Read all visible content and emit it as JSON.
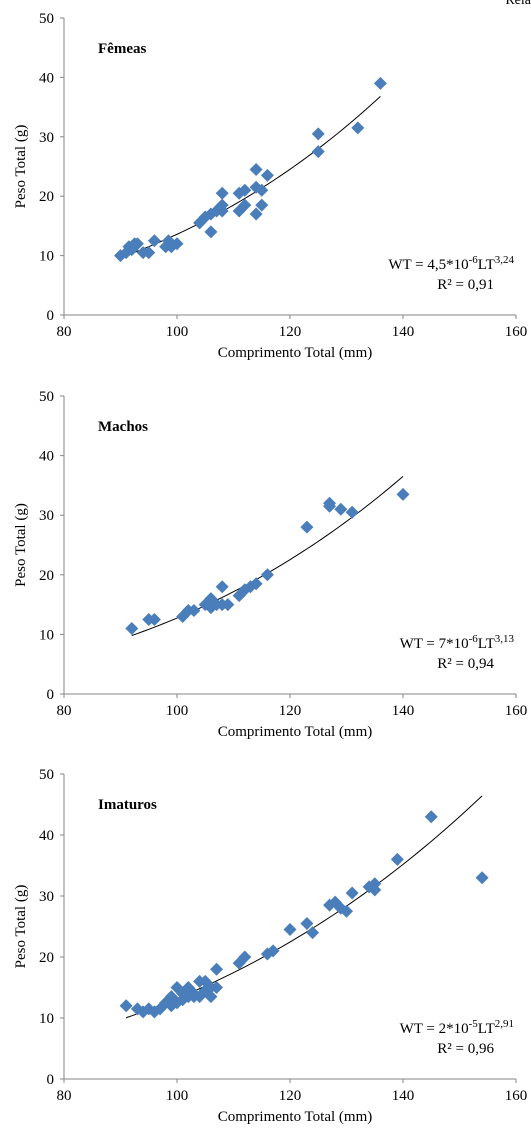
{
  "page": {
    "corner_text": "Rela"
  },
  "chart_data": [
    {
      "type": "scatter",
      "panel_label": "Fêmeas",
      "xlabel": "Comprimento Total (mm)",
      "ylabel": "Peso Total (g)",
      "xlim": [
        80,
        160
      ],
      "ylim": [
        0,
        50
      ],
      "xticks": [
        "80",
        "100",
        "120",
        "140",
        "160"
      ],
      "yticks": [
        "0",
        "10",
        "20",
        "30",
        "40",
        "50"
      ],
      "grid": false,
      "marker_color": "#4a7ebb",
      "trendline": {
        "a": 4.5e-06,
        "b": 3.24,
        "x_range": [
          90,
          136
        ],
        "color": "#000000"
      },
      "equation": {
        "prefix": "WT = 4,5*10",
        "exp1": "-6",
        "mid": "LT",
        "exp2": "3,24",
        "r2": "R² = 0,91"
      },
      "points": [
        [
          90,
          10
        ],
        [
          91,
          10.5
        ],
        [
          91.5,
          11.5
        ],
        [
          92,
          11
        ],
        [
          92.5,
          12
        ],
        [
          93,
          12
        ],
        [
          94,
          10.5
        ],
        [
          95,
          10.5
        ],
        [
          96,
          12.5
        ],
        [
          98,
          11.5
        ],
        [
          98.5,
          12.5
        ],
        [
          99,
          11.5
        ],
        [
          100,
          12
        ],
        [
          104,
          15.5
        ],
        [
          105,
          16.5
        ],
        [
          106,
          17
        ],
        [
          106,
          14
        ],
        [
          107,
          17.5
        ],
        [
          107.5,
          18
        ],
        [
          108,
          18.5
        ],
        [
          108,
          20.5
        ],
        [
          108,
          17.5
        ],
        [
          111,
          17.5
        ],
        [
          111,
          20.5
        ],
        [
          112,
          18.5
        ],
        [
          112,
          21
        ],
        [
          114,
          24.5
        ],
        [
          114,
          21.5
        ],
        [
          114,
          17
        ],
        [
          115,
          18.5
        ],
        [
          115,
          21
        ],
        [
          116,
          23.5
        ],
        [
          125,
          30.5
        ],
        [
          125,
          27.5
        ],
        [
          132,
          31.5
        ],
        [
          136,
          39
        ]
      ]
    },
    {
      "type": "scatter",
      "panel_label": "Machos",
      "xlabel": "Comprimento Total (mm)",
      "ylabel": "Peso Total (g)",
      "xlim": [
        80,
        160
      ],
      "ylim": [
        0,
        50
      ],
      "xticks": [
        "80",
        "100",
        "120",
        "140",
        "160"
      ],
      "yticks": [
        "0",
        "10",
        "20",
        "30",
        "40",
        "50"
      ],
      "grid": false,
      "marker_color": "#4a7ebb",
      "trendline": {
        "a": 7e-06,
        "b": 3.13,
        "x_range": [
          92,
          140
        ],
        "color": "#000000"
      },
      "equation": {
        "prefix": "WT = 7*10",
        "exp1": "-6",
        "mid": "LT",
        "exp2": "3,13",
        "r2": "R² = 0,94"
      },
      "points": [
        [
          92,
          11
        ],
        [
          95,
          12.5
        ],
        [
          96,
          12.5
        ],
        [
          101,
          13
        ],
        [
          102,
          14
        ],
        [
          103,
          14
        ],
        [
          105,
          15
        ],
        [
          106,
          14.5
        ],
        [
          106,
          16
        ],
        [
          107,
          15
        ],
        [
          108,
          18
        ],
        [
          108,
          15
        ],
        [
          109,
          15
        ],
        [
          111,
          16.5
        ],
        [
          112,
          17.5
        ],
        [
          113,
          18
        ],
        [
          114,
          18.5
        ],
        [
          116,
          20
        ],
        [
          123,
          28
        ],
        [
          127,
          31.5
        ],
        [
          127,
          32
        ],
        [
          129,
          31
        ],
        [
          131,
          30.5
        ],
        [
          140,
          33.5
        ]
      ]
    },
    {
      "type": "scatter",
      "panel_label": "Imaturos",
      "xlabel": "Comprimento Total (mm)",
      "ylabel": "Peso Total (g)",
      "xlim": [
        80,
        160
      ],
      "ylim": [
        0,
        50
      ],
      "xticks": [
        "80",
        "100",
        "120",
        "140",
        "160"
      ],
      "yticks": [
        "0",
        "10",
        "20",
        "30",
        "40",
        "50"
      ],
      "grid": false,
      "marker_color": "#4a7ebb",
      "trendline": {
        "a": 2e-05,
        "b": 2.91,
        "x_range": [
          91,
          154
        ],
        "color": "#000000"
      },
      "equation": {
        "prefix": "WT = 2*10",
        "exp1": "-5",
        "mid": "LT",
        "exp2": "2,91",
        "r2": "R² = 0,96"
      },
      "points": [
        [
          91,
          12
        ],
        [
          93,
          11.5
        ],
        [
          94,
          11
        ],
        [
          95,
          11.5
        ],
        [
          96,
          11
        ],
        [
          97,
          11.5
        ],
        [
          98,
          12.5
        ],
        [
          99,
          12
        ],
        [
          99,
          13.5
        ],
        [
          100,
          15
        ],
        [
          100,
          12.5
        ],
        [
          101,
          13
        ],
        [
          101,
          14
        ],
        [
          102,
          13.5
        ],
        [
          102,
          15
        ],
        [
          103,
          14
        ],
        [
          103,
          13.5
        ],
        [
          104,
          16
        ],
        [
          104,
          13.5
        ],
        [
          105,
          14.5
        ],
        [
          105,
          16
        ],
        [
          106,
          13.5
        ],
        [
          106,
          15
        ],
        [
          107,
          18
        ],
        [
          107,
          15
        ],
        [
          111,
          19
        ],
        [
          112,
          20
        ],
        [
          116,
          20.5
        ],
        [
          117,
          21
        ],
        [
          120,
          24.5
        ],
        [
          123,
          25.5
        ],
        [
          124,
          24
        ],
        [
          127,
          28.5
        ],
        [
          128,
          29
        ],
        [
          129,
          28
        ],
        [
          130,
          27.5
        ],
        [
          131,
          30.5
        ],
        [
          134,
          31.5
        ],
        [
          135,
          31
        ],
        [
          135,
          32
        ],
        [
          139,
          36
        ],
        [
          145,
          43
        ],
        [
          154,
          33
        ]
      ]
    }
  ]
}
